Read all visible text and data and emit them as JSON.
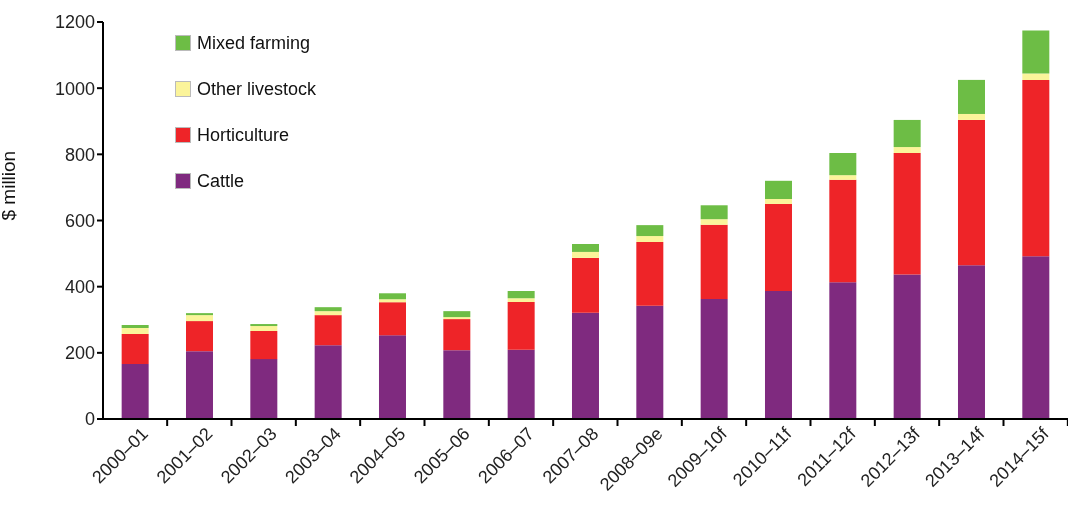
{
  "chart_data": {
    "type": "bar",
    "stacked": true,
    "ylabel": "$ million",
    "categories": [
      "2000–01",
      "2001–02",
      "2002–03",
      "2003–04",
      "2004–05",
      "2005–06",
      "2006–07",
      "2007–08",
      "2008–09e",
      "2009–10f",
      "2010–11f",
      "2011–12f",
      "2012–13f",
      "2013–14f",
      "2014–15f"
    ],
    "series": [
      {
        "name": "Cattle",
        "color": "#7f2a7f",
        "values": [
          166,
          205,
          181,
          223,
          253,
          208,
          209,
          321,
          342,
          363,
          387,
          413,
          437,
          465,
          492
        ]
      },
      {
        "name": "Horticulture",
        "color": "#ee2428",
        "values": [
          91,
          91,
          85,
          91,
          100,
          94,
          145,
          166,
          193,
          224,
          263,
          310,
          367,
          439,
          533
        ]
      },
      {
        "name": "Other livestock",
        "color": "#fbf49a",
        "values": [
          18,
          18,
          15,
          12,
          9,
          6,
          11,
          18,
          18,
          17,
          15,
          14,
          18,
          18,
          19
        ]
      },
      {
        "name": "Mixed farming",
        "color": "#6dbd45",
        "values": [
          9,
          6,
          6,
          12,
          18,
          18,
          22,
          24,
          33,
          42,
          55,
          67,
          82,
          103,
          130
        ]
      }
    ],
    "ylim": [
      0,
      1200
    ],
    "yticks": [
      0,
      200,
      400,
      600,
      800,
      1000,
      1200
    ],
    "grid": false,
    "legend": "top left"
  }
}
